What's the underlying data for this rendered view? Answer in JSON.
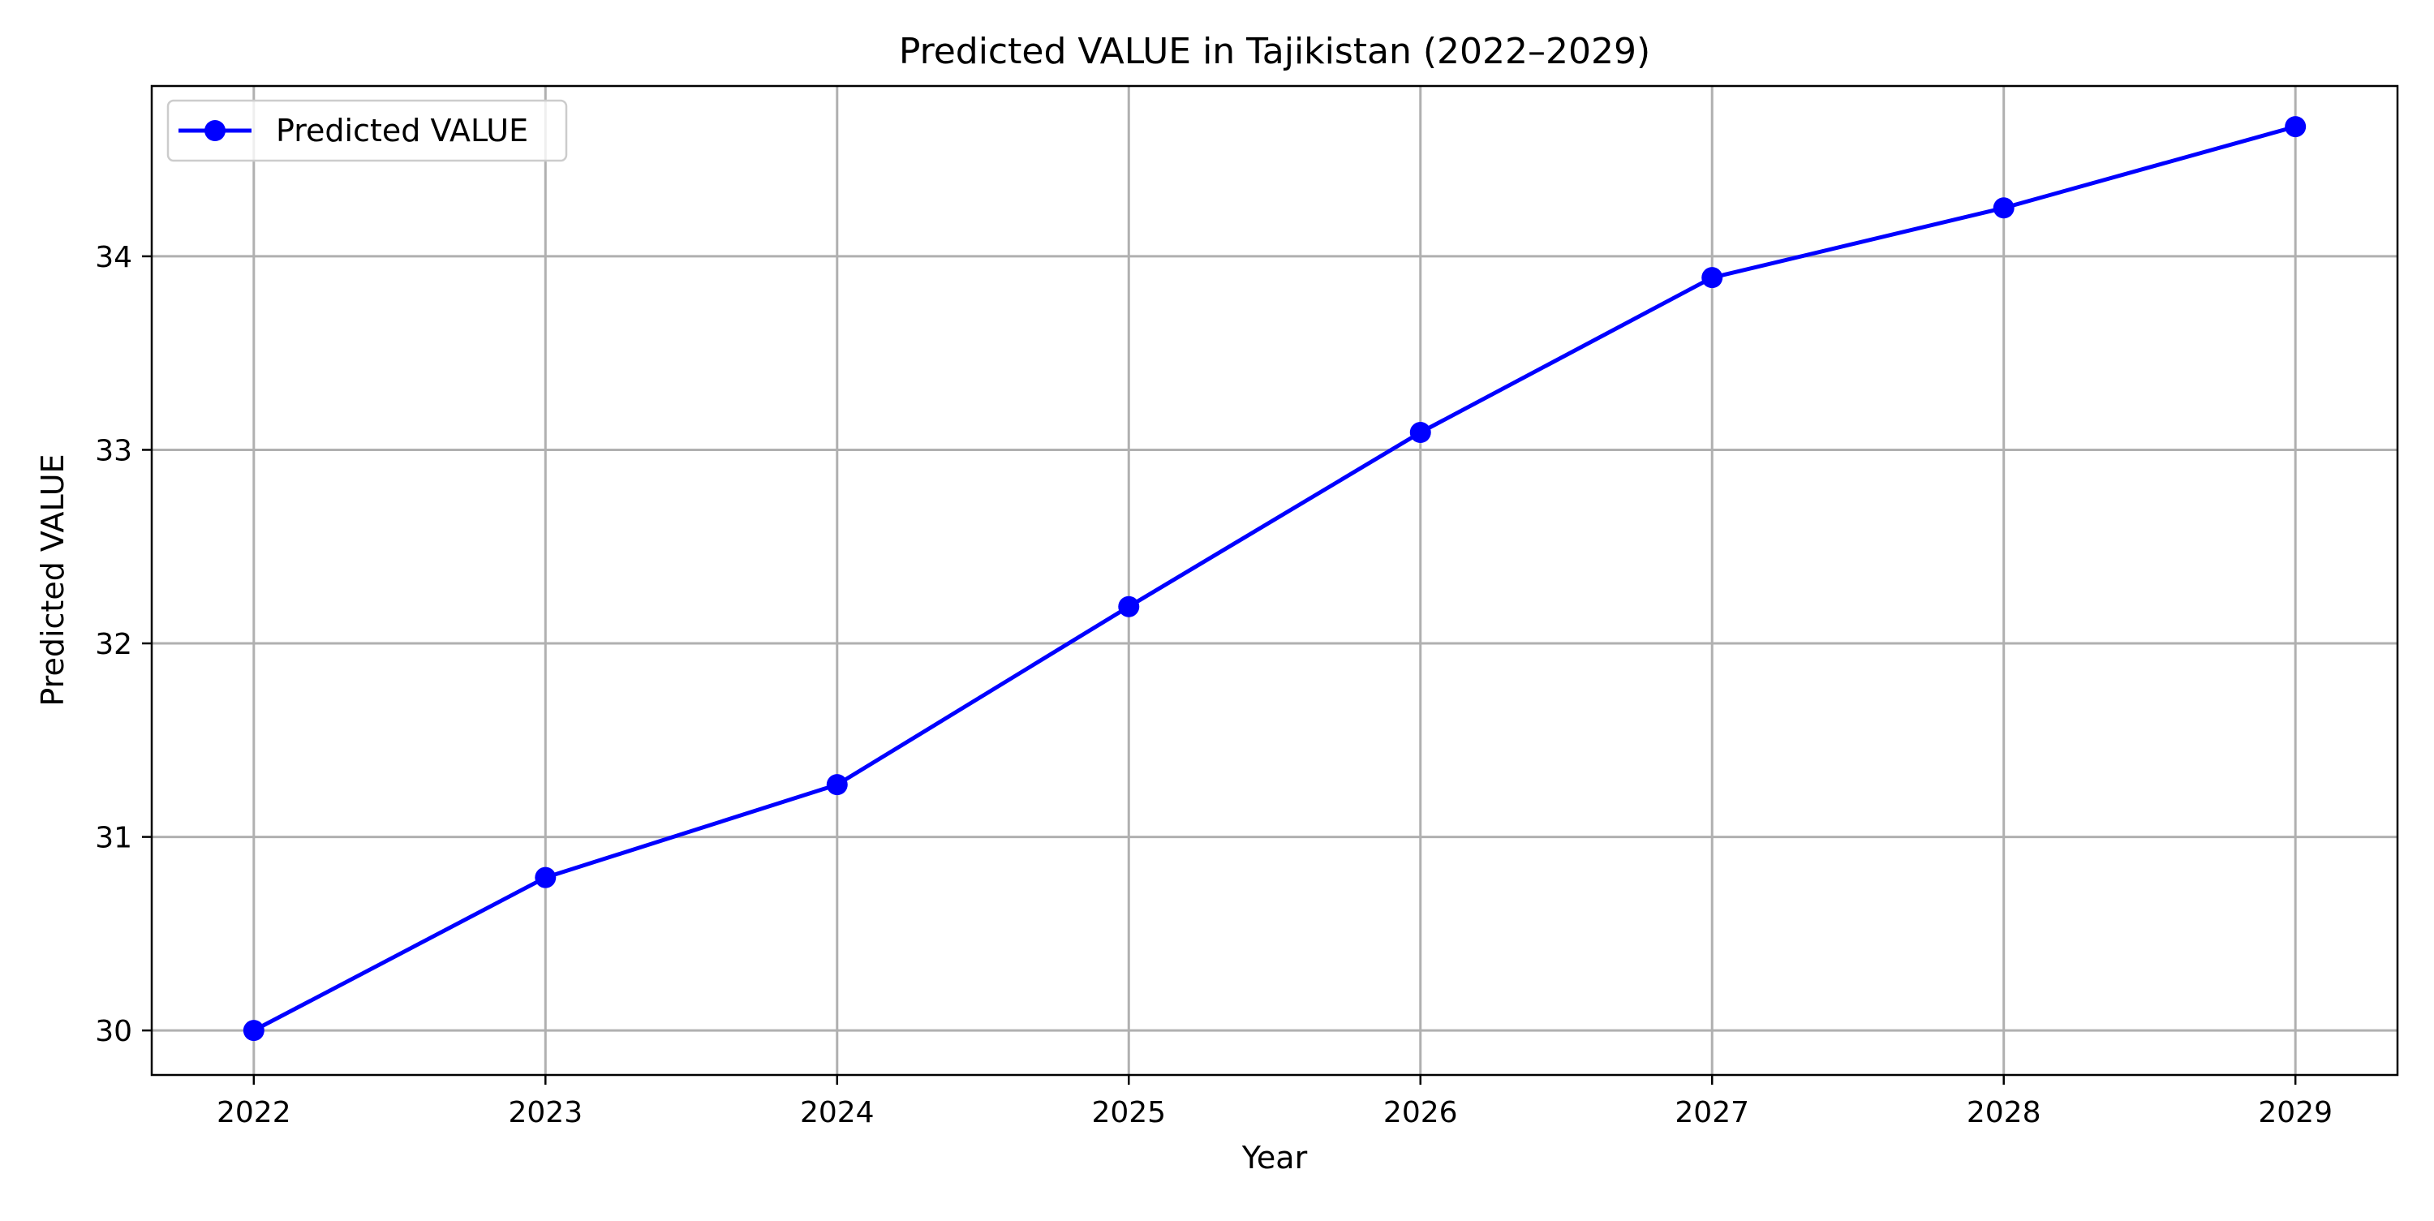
{
  "chart_data": {
    "type": "line",
    "title": "Predicted VALUE in Tajikistan (2022–2029)",
    "xlabel": "Year",
    "ylabel": "Predicted VALUE",
    "x": [
      2022,
      2023,
      2024,
      2025,
      2026,
      2027,
      2028,
      2029
    ],
    "xlim": [
      2021.65,
      2029.35
    ],
    "ylim": [
      29.77,
      34.88
    ],
    "x_ticks": [
      "2022",
      "2023",
      "2024",
      "2025",
      "2026",
      "2027",
      "2028",
      "2029"
    ],
    "y_ticks": [
      "30",
      "31",
      "32",
      "33",
      "34"
    ],
    "grid": true,
    "legend_position": "top-left",
    "series": [
      {
        "name": "Predicted VALUE",
        "color": "#0000ff",
        "marker": "circle",
        "values": [
          30.0,
          30.79,
          31.27,
          32.19,
          33.09,
          33.89,
          34.25,
          34.67
        ]
      }
    ]
  }
}
